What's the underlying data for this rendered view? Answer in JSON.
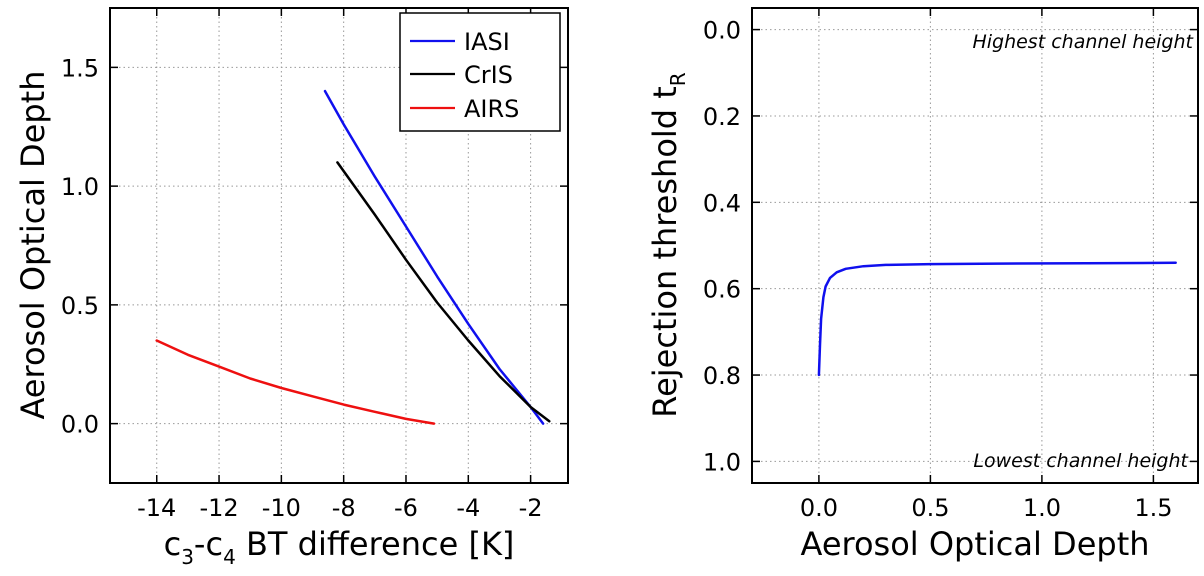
{
  "chart_data": [
    {
      "type": "line",
      "xlabel": {
        "pre": "c",
        "sub1": "3",
        "mid": "-c",
        "sub2": "4",
        "post": " BT difference [K]"
      },
      "ylabel": "Aerosol Optical Depth",
      "xlim": [
        -15.5,
        -0.8
      ],
      "ylim": [
        -0.25,
        1.75
      ],
      "xticks": [
        -14,
        -12,
        -10,
        -8,
        -6,
        -4,
        -2
      ],
      "xtick_labels": [
        "-14",
        "-12",
        "-10",
        "-8",
        "-6",
        "-4",
        "-2"
      ],
      "yticks": [
        0.0,
        0.5,
        1.0,
        1.5
      ],
      "ytick_labels": [
        "0.0",
        "0.5",
        "1.0",
        "1.5"
      ],
      "grid": true,
      "legend_position": "top-right",
      "series": [
        {
          "name": "IASI",
          "color": "#1010ee",
          "x": [
            -8.6,
            -8.0,
            -7.0,
            -6.0,
            -5.0,
            -4.0,
            -3.0,
            -2.0,
            -1.6
          ],
          "y": [
            1.4,
            1.26,
            1.04,
            0.83,
            0.62,
            0.42,
            0.23,
            0.07,
            0.0
          ]
        },
        {
          "name": "CrIS",
          "color": "#000000",
          "x": [
            -8.2,
            -7.0,
            -6.0,
            -5.0,
            -4.0,
            -3.0,
            -2.0,
            -1.4
          ],
          "y": [
            1.1,
            0.88,
            0.69,
            0.51,
            0.35,
            0.2,
            0.07,
            0.01
          ]
        },
        {
          "name": "AIRS",
          "color": "#ee1010",
          "x": [
            -14.0,
            -13.0,
            -12.0,
            -11.0,
            -10.0,
            -9.0,
            -8.0,
            -7.0,
            -6.0,
            -5.1
          ],
          "y": [
            0.35,
            0.29,
            0.24,
            0.19,
            0.15,
            0.115,
            0.08,
            0.05,
            0.02,
            0.0
          ]
        }
      ]
    },
    {
      "type": "line",
      "xlabel": "Aerosol Optical Depth",
      "ylabel": {
        "text": "Rejection threshold t",
        "sub": "R"
      },
      "xlim": [
        -0.3,
        1.7
      ],
      "ylim": [
        1.05,
        -0.05
      ],
      "y_inverted": true,
      "xticks": [
        0.0,
        0.5,
        1.0,
        1.5
      ],
      "xtick_labels": [
        "0.0",
        "0.5",
        "1.0",
        "1.5"
      ],
      "yticks": [
        0.0,
        0.2,
        0.4,
        0.6,
        0.8,
        1.0
      ],
      "ytick_labels": [
        "0.0",
        "0.2",
        "0.4",
        "0.6",
        "0.8",
        "1.0"
      ],
      "grid": true,
      "annotations": [
        "Highest channel height",
        "Lowest channel height"
      ],
      "series": [
        {
          "color": "#1010ee",
          "x": [
            0.0,
            0.005,
            0.01,
            0.02,
            0.03,
            0.05,
            0.08,
            0.12,
            0.2,
            0.3,
            0.5,
            0.8,
            1.2,
            1.6
          ],
          "y": [
            0.8,
            0.73,
            0.67,
            0.62,
            0.595,
            0.575,
            0.562,
            0.554,
            0.548,
            0.545,
            0.543,
            0.542,
            0.541,
            0.54
          ]
        }
      ]
    }
  ]
}
